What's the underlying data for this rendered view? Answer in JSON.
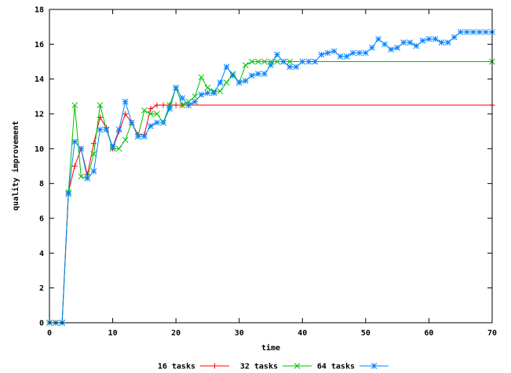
{
  "chart_data": {
    "type": "line",
    "title": "",
    "xlabel": "time",
    "ylabel": "quality improvement",
    "xlim": [
      0,
      70
    ],
    "ylim": [
      0,
      18
    ],
    "x_ticks": [
      "0",
      "10",
      "20",
      "30",
      "40",
      "50",
      "60",
      "70"
    ],
    "y_ticks": [
      "0",
      "2",
      "4",
      "6",
      "8",
      "10",
      "12",
      "14",
      "16",
      "18"
    ],
    "grid": false,
    "legend_position": "bottom",
    "series": [
      {
        "name": "16 tasks",
        "color": "#ff0000",
        "marker": "plus",
        "points": [
          [
            0,
            0
          ],
          [
            1,
            0
          ],
          [
            2,
            0
          ],
          [
            3,
            7.5
          ],
          [
            4,
            9
          ],
          [
            5,
            10
          ],
          [
            6,
            8.5
          ],
          [
            7,
            10.3
          ],
          [
            8,
            11.8
          ],
          [
            9,
            11.2
          ],
          [
            10,
            10
          ],
          [
            11,
            11
          ],
          [
            12,
            12
          ],
          [
            13,
            11.5
          ],
          [
            14,
            10.8
          ],
          [
            15,
            10.8
          ],
          [
            16,
            12.3
          ],
          [
            17,
            12.5
          ],
          [
            18,
            12.5
          ],
          [
            19,
            12.5
          ],
          [
            20,
            12.5
          ],
          [
            21,
            12.5
          ],
          [
            22,
            12.5
          ],
          [
            70,
            12.5
          ]
        ]
      },
      {
        "name": "32 tasks",
        "color": "#00c000",
        "marker": "cross",
        "points": [
          [
            0,
            0
          ],
          [
            1,
            0
          ],
          [
            2,
            0
          ],
          [
            3,
            7.5
          ],
          [
            4,
            12.5
          ],
          [
            5,
            8.4
          ],
          [
            6,
            8.3
          ],
          [
            7,
            9.7
          ],
          [
            8,
            12.5
          ],
          [
            9,
            11.1
          ],
          [
            10,
            10
          ],
          [
            11,
            10
          ],
          [
            12,
            10.5
          ],
          [
            13,
            11.5
          ],
          [
            14,
            10.7
          ],
          [
            15,
            12.2
          ],
          [
            16,
            12
          ],
          [
            17,
            12
          ],
          [
            18,
            11.5
          ],
          [
            19,
            12.5
          ],
          [
            20,
            13.5
          ],
          [
            21,
            12.5
          ],
          [
            22,
            12.7
          ],
          [
            23,
            13
          ],
          [
            24,
            14.1
          ],
          [
            25,
            13.5
          ],
          [
            26,
            13.3
          ],
          [
            27,
            13.3
          ],
          [
            28,
            13.8
          ],
          [
            29,
            14.3
          ],
          [
            30,
            13.8
          ],
          [
            31,
            14.8
          ],
          [
            32,
            15
          ],
          [
            33,
            15
          ],
          [
            34,
            15
          ],
          [
            35,
            15
          ],
          [
            36,
            15
          ],
          [
            37,
            15
          ],
          [
            38,
            15
          ],
          [
            70,
            15
          ]
        ]
      },
      {
        "name": "64 tasks",
        "color": "#0080ff",
        "marker": "star",
        "points": [
          [
            0,
            0
          ],
          [
            1,
            0
          ],
          [
            2,
            0
          ],
          [
            3,
            7.4
          ],
          [
            4,
            10.4
          ],
          [
            5,
            10
          ],
          [
            6,
            8.3
          ],
          [
            7,
            8.7
          ],
          [
            8,
            11.1
          ],
          [
            9,
            11.1
          ],
          [
            10,
            10.1
          ],
          [
            11,
            11.1
          ],
          [
            12,
            12.7
          ],
          [
            13,
            11.5
          ],
          [
            14,
            10.7
          ],
          [
            15,
            10.7
          ],
          [
            16,
            11.3
          ],
          [
            17,
            11.5
          ],
          [
            18,
            11.5
          ],
          [
            19,
            12.3
          ],
          [
            20,
            13.5
          ],
          [
            21,
            12.9
          ],
          [
            22,
            12.5
          ],
          [
            23,
            12.7
          ],
          [
            24,
            13.1
          ],
          [
            25,
            13.2
          ],
          [
            26,
            13.2
          ],
          [
            27,
            13.8
          ],
          [
            28,
            14.7
          ],
          [
            29,
            14.2
          ],
          [
            30,
            13.8
          ],
          [
            31,
            13.9
          ],
          [
            32,
            14.2
          ],
          [
            33,
            14.3
          ],
          [
            34,
            14.3
          ],
          [
            35,
            14.8
          ],
          [
            36,
            15.4
          ],
          [
            37,
            15
          ],
          [
            38,
            14.7
          ],
          [
            39,
            14.7
          ],
          [
            40,
            15
          ],
          [
            41,
            15
          ],
          [
            42,
            15
          ],
          [
            43,
            15.4
          ],
          [
            44,
            15.5
          ],
          [
            45,
            15.6
          ],
          [
            46,
            15.3
          ],
          [
            47,
            15.3
          ],
          [
            48,
            15.5
          ],
          [
            49,
            15.5
          ],
          [
            50,
            15.5
          ],
          [
            51,
            15.8
          ],
          [
            52,
            16.3
          ],
          [
            53,
            16
          ],
          [
            54,
            15.7
          ],
          [
            55,
            15.8
          ],
          [
            56,
            16.1
          ],
          [
            57,
            16.1
          ],
          [
            58,
            15.9
          ],
          [
            59,
            16.2
          ],
          [
            60,
            16.3
          ],
          [
            61,
            16.3
          ],
          [
            62,
            16.1
          ],
          [
            63,
            16.1
          ],
          [
            64,
            16.4
          ],
          [
            65,
            16.7
          ],
          [
            66,
            16.7
          ],
          [
            67,
            16.7
          ],
          [
            68,
            16.7
          ],
          [
            69,
            16.7
          ],
          [
            70,
            16.7
          ]
        ]
      }
    ]
  }
}
